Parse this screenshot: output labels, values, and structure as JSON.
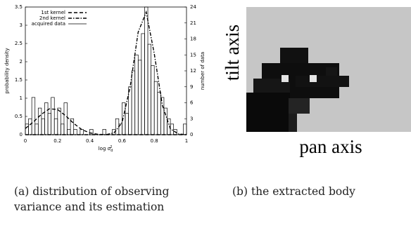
{
  "chart_data": {
    "type": "line",
    "x_label": {
      "base": "log σ",
      "sub": "d",
      "sup": "2"
    },
    "y_label": "probability density",
    "y2_label": "number of data",
    "x": [
      0,
      0.05,
      0.1,
      0.15,
      0.2,
      0.25,
      0.3,
      0.35,
      0.4,
      0.45,
      0.5,
      0.55,
      0.6,
      0.65,
      0.7,
      0.75,
      0.8,
      0.85,
      0.9,
      0.95,
      1
    ],
    "series": [
      {
        "name": "1st kernel",
        "color": "#000000",
        "line_style": "dashed",
        "values": [
          0.17,
          0.35,
          0.56,
          0.71,
          0.69,
          0.52,
          0.31,
          0.14,
          0.05,
          0.01,
          0,
          0,
          0,
          0,
          0,
          0,
          0,
          0,
          0,
          0,
          0
        ]
      },
      {
        "name": "2nd kernel",
        "color": "#000000",
        "line_style": "dash-dot",
        "values": [
          0,
          0,
          0,
          0,
          0,
          0,
          0,
          0,
          0,
          0,
          0,
          0.05,
          0.33,
          1.3,
          2.81,
          3.36,
          2.22,
          0.81,
          0.16,
          0.02,
          0
        ]
      }
    ],
    "histogram": {
      "name": "acquired data",
      "color": "#000000",
      "axis": "y2",
      "bins": [
        0,
        0.02,
        0.04,
        0.06,
        0.08,
        0.1,
        0.12,
        0.14,
        0.16,
        0.18,
        0.2,
        0.22,
        0.24,
        0.26,
        0.28,
        0.3,
        0.32,
        0.34,
        0.36,
        0.38,
        0.4,
        0.42,
        0.44,
        0.46,
        0.48,
        0.5,
        0.52,
        0.54,
        0.56,
        0.58,
        0.6,
        0.62,
        0.64,
        0.66,
        0.68,
        0.7,
        0.72,
        0.74,
        0.76,
        0.78,
        0.8,
        0.82,
        0.84,
        0.86,
        0.88,
        0.9,
        0.92,
        0.94,
        0.96,
        0.98,
        1
      ],
      "counts": [
        2,
        3,
        7,
        2,
        5,
        3,
        6,
        4,
        7,
        3,
        5,
        2,
        6,
        1,
        3,
        1,
        0,
        1,
        0,
        0,
        1,
        0,
        0,
        0,
        1,
        0,
        0,
        1,
        3,
        2,
        6,
        4,
        9,
        12,
        15,
        14,
        19,
        24,
        17,
        13,
        10,
        8,
        7,
        5,
        3,
        2,
        1,
        0,
        0,
        2
      ]
    },
    "xlim": [
      0,
      1
    ],
    "xticks": [
      0,
      0.2,
      0.4,
      0.6,
      0.8,
      1
    ],
    "ylim": [
      0,
      3.5
    ],
    "yticks": [
      0,
      0.5,
      1,
      1.5,
      2,
      2.5,
      3,
      3.5
    ],
    "y2lim": [
      0,
      24
    ],
    "y2ticks": [
      0,
      3,
      6,
      9,
      12,
      15,
      18,
      21,
      24
    ],
    "legend": "upper left",
    "grid": false
  },
  "image_panel": {
    "y_label": "tilt axis",
    "x_label": "pan axis"
  },
  "captions": [
    "(a) distribution of observing variance and its estimation",
    "(b) the extracted body"
  ]
}
